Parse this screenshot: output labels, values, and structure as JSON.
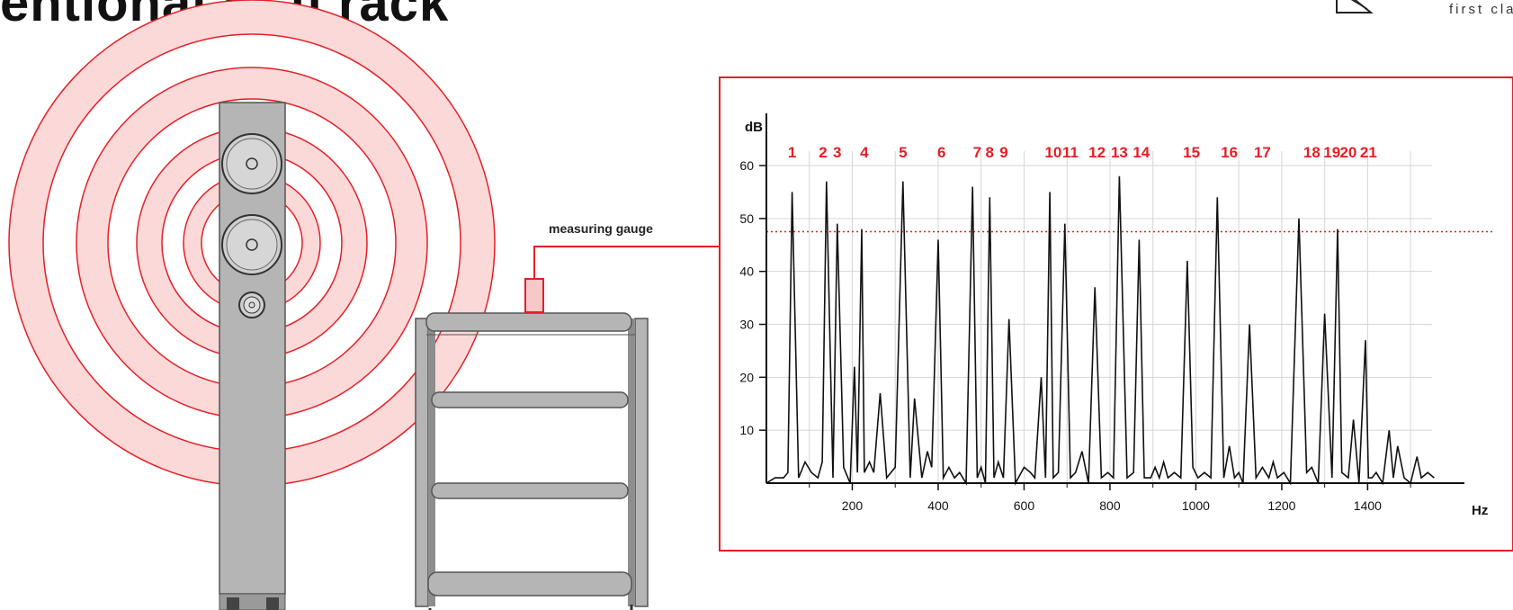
{
  "header": {
    "title": "entional hi-fi rack",
    "logo_text": "first class"
  },
  "diagram": {
    "gauge_label": "measuring gauge",
    "accent_color": "#e41f26",
    "ring_fill": "#fbd9d9",
    "furniture_fill": "#b5b5b5"
  },
  "chart_data": {
    "type": "line",
    "ylabel": "dB",
    "xlabel": "Hz",
    "xlim": [
      0,
      1550
    ],
    "ylim": [
      0,
      60
    ],
    "x_ticks": [
      200,
      400,
      600,
      800,
      1000,
      1200,
      1400
    ],
    "y_ticks": [
      10,
      20,
      30,
      40,
      50,
      60
    ],
    "threshold_db": 47.5,
    "peak_labels": [
      {
        "label": "1",
        "x": 60
      },
      {
        "label": "2",
        "x": 132
      },
      {
        "label": "3",
        "x": 165
      },
      {
        "label": "4",
        "x": 228
      },
      {
        "label": "5",
        "x": 318
      },
      {
        "label": "6",
        "x": 408
      },
      {
        "label": "7",
        "x": 491
      },
      {
        "label": "8",
        "x": 520
      },
      {
        "label": "9",
        "x": 553
      },
      {
        "label": "10",
        "x": 668
      },
      {
        "label": "11",
        "x": 708
      },
      {
        "label": "12",
        "x": 770
      },
      {
        "label": "13",
        "x": 822
      },
      {
        "label": "14",
        "x": 873
      },
      {
        "label": "15",
        "x": 990
      },
      {
        "label": "16",
        "x": 1078
      },
      {
        "label": "17",
        "x": 1155
      },
      {
        "label": "18",
        "x": 1270
      },
      {
        "label": "19",
        "x": 1317
      },
      {
        "label": "20",
        "x": 1355
      },
      {
        "label": "21",
        "x": 1402
      }
    ],
    "series": [
      {
        "x": [
          0,
          20,
          40,
          50,
          60,
          75,
          90,
          105,
          120,
          130,
          140,
          155,
          165,
          180,
          195,
          205,
          212,
          222,
          228,
          240,
          250,
          265,
          280,
          300,
          318,
          335,
          345,
          362,
          375,
          385,
          400,
          412,
          425,
          438,
          450,
          465,
          480,
          491,
          500,
          510,
          520,
          530,
          540,
          552,
          565,
          580,
          600,
          615,
          625,
          640,
          650,
          660,
          668,
          680,
          695,
          708,
          720,
          735,
          750,
          765,
          780,
          795,
          808,
          822,
          840,
          855,
          868,
          880,
          895,
          905,
          915,
          925,
          935,
          950,
          965,
          980,
          993,
          1005,
          1020,
          1035,
          1050,
          1065,
          1078,
          1090,
          1100,
          1110,
          1125,
          1140,
          1155,
          1170,
          1180,
          1190,
          1205,
          1220,
          1240,
          1258,
          1270,
          1285,
          1300,
          1317,
          1330,
          1340,
          1355,
          1367,
          1380,
          1395,
          1402,
          1410,
          1420,
          1435,
          1450,
          1460,
          1470,
          1485,
          1500,
          1515,
          1525,
          1540,
          1555
        ],
        "y": [
          0,
          1,
          1,
          2,
          55,
          1,
          4,
          2,
          1,
          4,
          57,
          1,
          49,
          3,
          0,
          22,
          2,
          48,
          2,
          4,
          2,
          17,
          1,
          3,
          57,
          1,
          16,
          1,
          6,
          3,
          46,
          1,
          3,
          1,
          2,
          0,
          56,
          1,
          3,
          0,
          54,
          1,
          4,
          1,
          31,
          0,
          3,
          2,
          1,
          20,
          1,
          55,
          1,
          2,
          49,
          1,
          2,
          6,
          0,
          37,
          1,
          2,
          1,
          58,
          1,
          2,
          46,
          1,
          1,
          3,
          1,
          4,
          1,
          2,
          1,
          42,
          3,
          1,
          2,
          1,
          54,
          1,
          7,
          1,
          2,
          0,
          30,
          1,
          3,
          1,
          4,
          1,
          2,
          0,
          50,
          2,
          3,
          0,
          32,
          1,
          48,
          2,
          1,
          12,
          0,
          27,
          1,
          1,
          2,
          0,
          10,
          1,
          7,
          1,
          0,
          5,
          1,
          2,
          1
        ]
      }
    ]
  }
}
